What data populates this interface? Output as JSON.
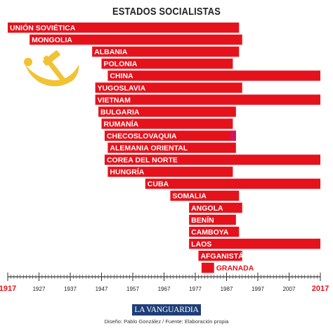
{
  "chart_data": {
    "type": "bar",
    "title": "ESTADOS SOCIALISTAS",
    "subtype": "horizontal timeline (floating bars, start year to end year)",
    "categories": [
      "UNIÓN SOVIÉTICA",
      "MONGOLIA",
      "ALBANIA",
      "POLONIA",
      "CHINA",
      "YUGOSLAVIA",
      "VIETNAM",
      "BULGARIA",
      "RUMANÍA",
      "CHECOSLOVAQUIA",
      "ALEMANIA ORIENTAL",
      "COREA DEL NORTE",
      "HUNGRÍA",
      "CUBA",
      "SOMALIA",
      "ANGOLA",
      "BENÍN",
      "CAMBOYA",
      "LAOS",
      "AFGANISTÁN",
      "GRANADA"
    ],
    "series": [
      {
        "start": [
          1917,
          1924,
          1944,
          1947,
          1949,
          1945,
          1945,
          1946,
          1947,
          1948,
          1949,
          1948,
          1949,
          1961,
          1969,
          1975,
          1975,
          1975,
          1975,
          1978,
          1979
        ],
        "end": [
          1991,
          1992,
          1991,
          1989,
          2017,
          1992,
          2017,
          1990,
          1989,
          1990,
          1990,
          2017,
          1989,
          2017,
          1991,
          1992,
          1990,
          1991,
          2017,
          1992,
          1983
        ]
      }
    ],
    "x_axis": {
      "range": [
        1917,
        2017
      ],
      "ticks": [
        "1917",
        "1927",
        "1937",
        "1947",
        "1957",
        "1967",
        "1977",
        "1987",
        "1997",
        "2007",
        "2017"
      ],
      "highlight_ticks": [
        "1917",
        "2017"
      ]
    },
    "grid": false,
    "legend": "none",
    "colors": {
      "bar": "#e5121c",
      "bar_end": "#d4145a",
      "label_text": "#ffffff",
      "axis": "#333333",
      "highlight_tick": "#e5121c",
      "emblem": "#f1c232"
    }
  },
  "brand": "LA VANGUARDIA",
  "credits": "Diseño: Pablo González / Fuente: Elaboración propia",
  "icons": {
    "emblem": "hammer-and-sickle-icon"
  }
}
